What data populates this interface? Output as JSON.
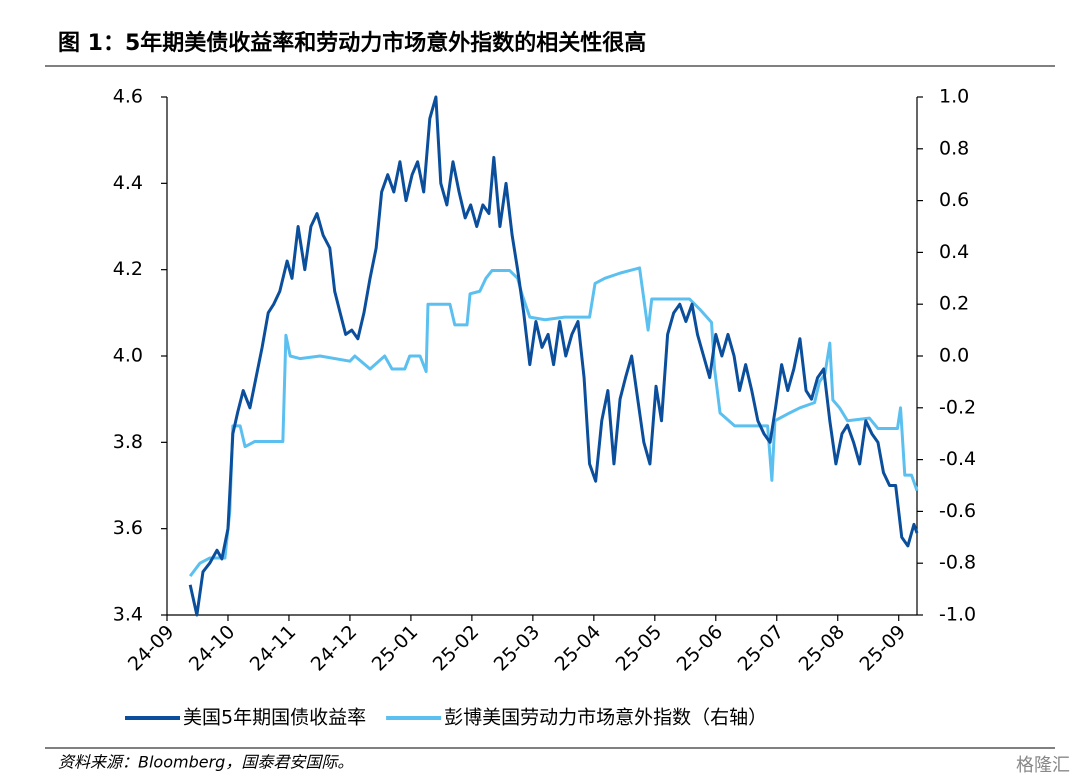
{
  "chart_data": {
    "type": "line",
    "title": "图 1：5年期美债收益率和劳动力市场意外指数的相关性很高",
    "source": "资料来源：Bloomberg，国泰君安国际。",
    "watermark": "格隆汇",
    "xlim": [
      0,
      12.3
    ],
    "xticks": [
      {
        "value": 0,
        "label": "24-09"
      },
      {
        "value": 1,
        "label": "24-10"
      },
      {
        "value": 2,
        "label": "24-11"
      },
      {
        "value": 3,
        "label": "24-12"
      },
      {
        "value": 4,
        "label": "25-01"
      },
      {
        "value": 5,
        "label": "25-02"
      },
      {
        "value": 6,
        "label": "25-03"
      },
      {
        "value": 7,
        "label": "25-04"
      },
      {
        "value": 8,
        "label": "25-05"
      },
      {
        "value": 9,
        "label": "25-06"
      },
      {
        "value": 10,
        "label": "25-07"
      },
      {
        "value": 11,
        "label": "25-08"
      },
      {
        "value": 12,
        "label": "25-09"
      }
    ],
    "ylim": [
      3.4,
      4.6
    ],
    "yticks": [
      3.4,
      3.6,
      3.8,
      {
        "value": 4,
        "label": "4.0"
      },
      4.2,
      4.4,
      4.6
    ],
    "y2lim": [
      -1,
      1
    ],
    "y2ticks": [
      {
        "value": -1,
        "label": "-1.0"
      },
      -0.8,
      -0.6,
      -0.4,
      -0.2,
      {
        "value": 0,
        "label": "0.0"
      },
      0.2,
      0.4,
      0.6,
      0.8,
      {
        "value": 1,
        "label": "1.0"
      }
    ],
    "series": [
      {
        "name": "美国5年期国债收益率",
        "color": "#0b4f9c",
        "x": [
          0.38,
          0.49,
          0.59,
          0.7,
          0.82,
          0.9,
          1.0,
          1.08,
          1.16,
          1.25,
          1.36,
          1.46,
          1.56,
          1.66,
          1.75,
          1.85,
          1.97,
          2.05,
          2.15,
          2.26,
          2.36,
          2.46,
          2.56,
          2.67,
          2.75,
          2.84,
          2.93,
          3.03,
          3.13,
          3.23,
          3.33,
          3.43,
          3.52,
          3.62,
          3.72,
          3.82,
          3.92,
          4.02,
          4.11,
          4.21,
          4.31,
          4.41,
          4.49,
          4.59,
          4.69,
          4.79,
          4.89,
          4.98,
          5.08,
          5.18,
          5.28,
          5.36,
          5.46,
          5.56,
          5.66,
          5.75,
          5.85,
          5.95,
          6.05,
          6.15,
          6.25,
          6.34,
          6.44,
          6.54,
          6.64,
          6.74,
          6.84,
          6.93,
          7.03,
          7.13,
          7.23,
          7.33,
          7.43,
          7.52,
          7.62,
          7.72,
          7.82,
          7.92,
          8.02,
          8.11,
          8.21,
          8.31,
          8.41,
          8.51,
          8.61,
          8.7,
          8.8,
          8.9,
          9.0,
          9.1,
          9.2,
          9.3,
          9.39,
          9.49,
          9.59,
          9.69,
          9.79,
          9.89,
          9.98,
          10.08,
          10.18,
          10.28,
          10.38,
          10.48,
          10.57,
          10.67,
          10.77,
          10.87,
          10.97,
          11.07,
          11.16,
          11.26,
          11.36,
          11.46,
          11.56,
          11.66,
          11.75,
          11.85,
          11.95,
          12.05,
          12.15,
          12.25,
          12.3
        ],
        "values": [
          3.47,
          3.4,
          3.5,
          3.52,
          3.55,
          3.53,
          3.6,
          3.82,
          3.87,
          3.92,
          3.88,
          3.95,
          4.02,
          4.1,
          4.12,
          4.15,
          4.22,
          4.18,
          4.3,
          4.2,
          4.3,
          4.33,
          4.28,
          4.25,
          4.15,
          4.1,
          4.05,
          4.06,
          4.04,
          4.1,
          4.18,
          4.25,
          4.38,
          4.42,
          4.38,
          4.45,
          4.36,
          4.42,
          4.45,
          4.38,
          4.55,
          4.6,
          4.4,
          4.35,
          4.45,
          4.38,
          4.32,
          4.35,
          4.3,
          4.35,
          4.33,
          4.46,
          4.3,
          4.4,
          4.28,
          4.2,
          4.1,
          3.98,
          4.08,
          4.02,
          4.05,
          3.98,
          4.08,
          4.0,
          4.05,
          4.08,
          3.95,
          3.75,
          3.71,
          3.85,
          3.92,
          3.75,
          3.9,
          3.95,
          4.0,
          3.9,
          3.8,
          3.75,
          3.93,
          3.85,
          4.05,
          4.1,
          4.12,
          4.08,
          4.12,
          4.05,
          4.0,
          3.95,
          4.05,
          4.0,
          4.05,
          4.0,
          3.92,
          3.98,
          3.92,
          3.85,
          3.82,
          3.8,
          3.88,
          3.98,
          3.92,
          3.97,
          4.04,
          3.92,
          3.9,
          3.95,
          3.97,
          3.85,
          3.75,
          3.82,
          3.84,
          3.8,
          3.75,
          3.85,
          3.82,
          3.8,
          3.73,
          3.7,
          3.7,
          3.58,
          3.56,
          3.61,
          3.59
        ]
      },
      {
        "name": "彭博美国劳动力市场意外指数（右轴）",
        "color": "#5bc0f0",
        "axis": "y2",
        "x": [
          0.38,
          0.54,
          0.7,
          0.95,
          1.03,
          1.08,
          1.2,
          1.28,
          1.44,
          1.52,
          1.9,
          1.95,
          2.02,
          2.18,
          2.51,
          3.0,
          3.08,
          3.33,
          3.57,
          3.69,
          3.9,
          3.98,
          4.15,
          4.25,
          4.28,
          4.64,
          4.72,
          4.92,
          4.97,
          5.13,
          5.23,
          5.33,
          5.62,
          5.75,
          5.82,
          5.95,
          6.2,
          6.52,
          6.93,
          7.02,
          7.18,
          7.43,
          7.75,
          7.89,
          7.95,
          8.57,
          8.74,
          8.93,
          8.98,
          9.07,
          9.31,
          9.72,
          9.85,
          9.92,
          9.97,
          10.21,
          10.38,
          10.62,
          10.7,
          10.79,
          10.87,
          10.92,
          11.03,
          11.16,
          11.52,
          11.66,
          11.98,
          12.03,
          12.1,
          12.21,
          12.3
        ],
        "values": [
          -0.85,
          -0.8,
          -0.78,
          -0.78,
          -0.6,
          -0.27,
          -0.27,
          -0.35,
          -0.33,
          -0.33,
          -0.33,
          0.08,
          0.0,
          -0.01,
          0.0,
          -0.02,
          0.0,
          -0.05,
          0.0,
          -0.05,
          -0.05,
          0.0,
          0.0,
          -0.06,
          0.2,
          0.2,
          0.12,
          0.12,
          0.24,
          0.25,
          0.3,
          0.33,
          0.33,
          0.3,
          0.24,
          0.15,
          0.14,
          0.15,
          0.15,
          0.28,
          0.3,
          0.32,
          0.34,
          0.1,
          0.22,
          0.22,
          0.18,
          0.13,
          -0.05,
          -0.22,
          -0.27,
          -0.27,
          -0.27,
          -0.48,
          -0.25,
          -0.22,
          -0.2,
          -0.18,
          -0.1,
          -0.07,
          0.05,
          -0.17,
          -0.2,
          -0.25,
          -0.24,
          -0.28,
          -0.28,
          -0.2,
          -0.46,
          -0.46,
          -0.52
        ]
      }
    ]
  }
}
